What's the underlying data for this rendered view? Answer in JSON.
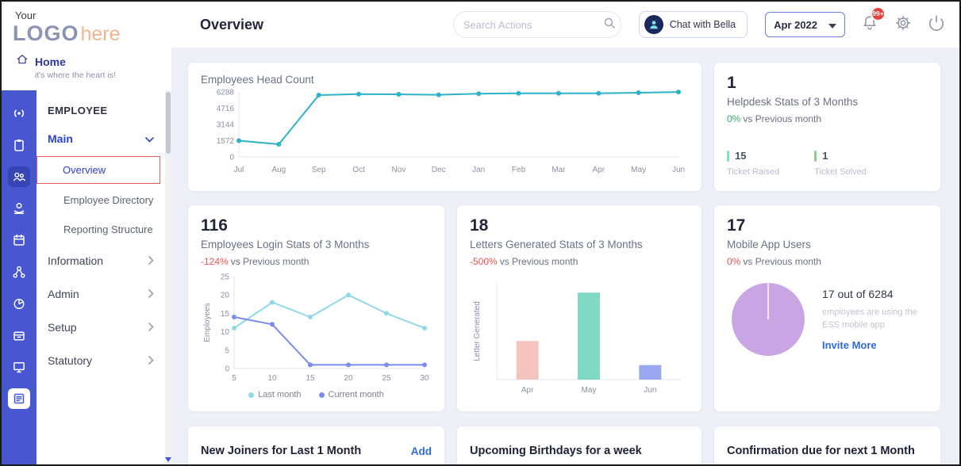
{
  "topbar": {
    "title": "Overview",
    "search_placeholder": "Search Actions",
    "chat_button": "Chat with Bella",
    "date_value": "Apr 2022",
    "bell_badge": "99+"
  },
  "sidebar": {
    "logo": {
      "your": "Your",
      "logo": "LOGO",
      "here": "here"
    },
    "home": {
      "label": "Home",
      "tagline": "it's where the heart is!"
    },
    "section": "EMPLOYEE",
    "main_group": {
      "label": "Main"
    },
    "main_items": [
      {
        "label": "Overview",
        "active": true
      },
      {
        "label": "Employee Directory"
      },
      {
        "label": "Reporting Structure"
      }
    ],
    "groups": [
      {
        "label": "Information"
      },
      {
        "label": "Admin"
      },
      {
        "label": "Setup"
      },
      {
        "label": "Statutory"
      }
    ],
    "rail_icons": [
      "announcement-icon",
      "tasks-icon",
      "employees-icon",
      "payroll-icon",
      "calendar-icon",
      "connections-icon",
      "reports-icon",
      "requests-icon",
      "devices-icon",
      "news-icon"
    ]
  },
  "cards": {
    "helpdesk": {
      "value": "1",
      "title": "Helpdesk Stats of 3 Months",
      "delta": "0%",
      "delta_color": "#2fae62",
      "delta_rest": "vs Previous month",
      "stats": [
        {
          "value": "15",
          "label": "Ticket Raised",
          "color": "#7de2c3"
        },
        {
          "value": "1",
          "label": "Ticket Solved",
          "color": "#8ed08b"
        }
      ]
    },
    "login": {
      "value": "116",
      "title": "Employees Login Stats of 3 Months",
      "delta": "-124%",
      "delta_color": "#ef5350",
      "delta_rest": "vs Previous month"
    },
    "letters": {
      "value": "18",
      "title": "Letters Generated Stats of 3 Months",
      "delta": "-500%",
      "delta_color": "#ef5350",
      "delta_rest": "vs Previous month"
    },
    "mobile": {
      "value": "17",
      "title": "Mobile App Users",
      "delta": "0%",
      "delta_color": "#ef5350",
      "delta_rest": "vs Previous month",
      "caption_title": "17 out of 6284",
      "caption": "employees are using the ESS mobile app",
      "link": "Invite More"
    }
  },
  "bottom_cards": [
    {
      "title": "New Joiners for Last 1 Month",
      "action": "Add"
    },
    {
      "title": "Upcoming Birthdays for a week"
    },
    {
      "title": "Confirmation due for next 1 Month"
    }
  ],
  "chart_data": [
    {
      "id": "headcount",
      "type": "line",
      "title": "Employees Head Count",
      "x": [
        "Jul",
        "Aug",
        "Sep",
        "Oct",
        "Nov",
        "Dec",
        "Jan",
        "Feb",
        "Mar",
        "Apr",
        "May",
        "Jun"
      ],
      "yticks": [
        0,
        1572,
        3144,
        4716,
        6288
      ],
      "ymax": 6288,
      "series": [
        {
          "name": "Head Count",
          "color": "#2db3c7",
          "values": [
            1572,
            1230,
            5980,
            6080,
            6060,
            6010,
            6120,
            6160,
            6150,
            6150,
            6210,
            6284
          ]
        }
      ],
      "grid": false,
      "legend": false
    },
    {
      "id": "login",
      "type": "line",
      "title": "Employees Login Stats of 3 Months",
      "x": [
        5,
        10,
        15,
        20,
        25,
        30
      ],
      "ylabel": "Employees",
      "yticks": [
        0,
        5,
        10,
        15,
        20,
        25
      ],
      "ymax": 25,
      "series": [
        {
          "name": "Last month",
          "color": "#8fd9e6",
          "values": [
            11,
            18,
            14,
            20,
            15,
            11
          ]
        },
        {
          "name": "Current month",
          "color": "#7b8bed",
          "values": [
            14,
            12,
            1,
            1,
            1,
            1
          ]
        }
      ],
      "grid": false,
      "legend": true
    },
    {
      "id": "letters",
      "type": "bar",
      "title": "Letters Generated Stats of 3 Months",
      "x": [
        "Apr",
        "May",
        "Jun"
      ],
      "ylabel": "Letter Generated",
      "ymax": 20,
      "values": [
        8,
        18,
        3
      ],
      "colors": [
        "#f6c4bf",
        "#7fd9c3",
        "#98a7f0"
      ],
      "grid": false
    },
    {
      "id": "mobile",
      "type": "pie",
      "title": "Mobile App Users",
      "value": 17,
      "total": 6284,
      "color": "#c9a5e3"
    }
  ]
}
